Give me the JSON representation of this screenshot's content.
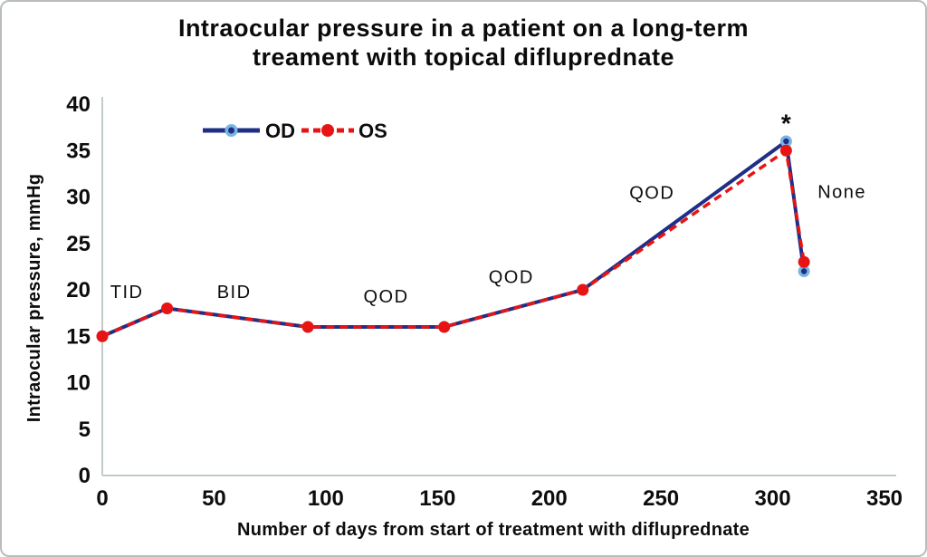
{
  "figure": {
    "background": "#ffffff",
    "border_color": "#b9bdbd"
  },
  "chart_data": {
    "type": "line",
    "title_line1": "Intraocular pressure in a patient on a long-term",
    "title_line2": "treament with topical difluprednate",
    "xlabel": "Number of days from start of treatment with difluprednate",
    "ylabel": "Intraocular pressure, mmHg",
    "xlim": [
      0,
      350
    ],
    "ylim": [
      0,
      40
    ],
    "x_ticks": [
      0,
      50,
      100,
      150,
      200,
      250,
      300,
      350
    ],
    "y_ticks": [
      0,
      5,
      10,
      15,
      20,
      25,
      30,
      35,
      40
    ],
    "grid": false,
    "legend_position": "top-left-inside",
    "axis_color": "#c3cbca",
    "text_color": "#0d0d0d",
    "x": [
      0,
      29,
      92,
      153,
      215,
      306,
      314
    ],
    "series": [
      {
        "name": "OD",
        "color": "#1f2e86",
        "style": "solid",
        "marker": "dot-halo",
        "marker_fill": "#79b5e3",
        "marker_center": "#1f2e86",
        "values": [
          15,
          18,
          16,
          16,
          20,
          36,
          22
        ]
      },
      {
        "name": "OS",
        "color": "#e81414",
        "style": "dashed",
        "marker": "dot",
        "marker_fill": "#e81414",
        "values": [
          15,
          18,
          16,
          16,
          20,
          35,
          23
        ]
      }
    ],
    "annotations": [
      {
        "text": "TID",
        "x": 11,
        "y": 19.8
      },
      {
        "text": "BID",
        "x": 59,
        "y": 19.8
      },
      {
        "text": "QOD",
        "x": 127,
        "y": 19.3
      },
      {
        "text": "QOD",
        "x": 183,
        "y": 21.4
      },
      {
        "text": "QOD",
        "x": 246,
        "y": 30.5
      },
      {
        "text": "*",
        "x": 306,
        "y": 38.6
      },
      {
        "text": "None",
        "x": 331,
        "y": 30.6
      }
    ]
  }
}
